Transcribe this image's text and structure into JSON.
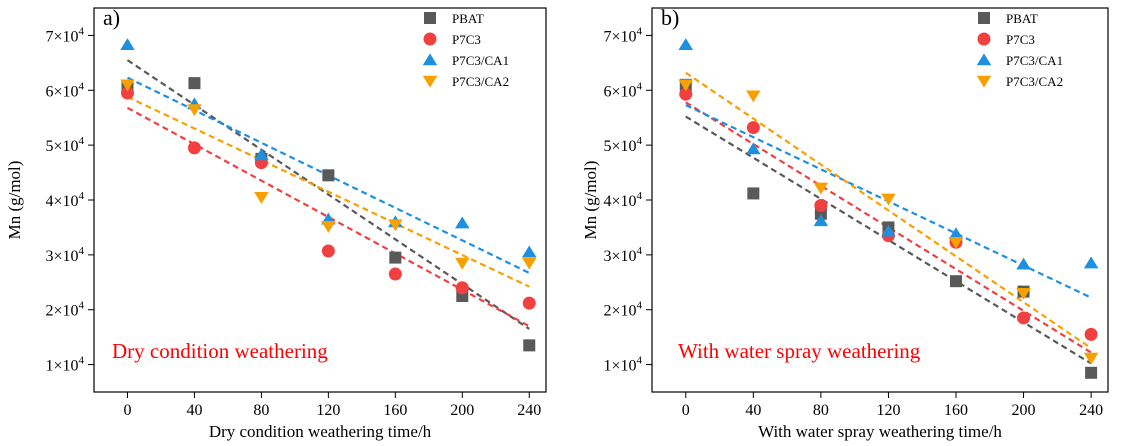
{
  "chart_data": [
    {
      "type": "scatter",
      "panel_label": "a)",
      "xlabel": "Dry condition weathering time/h",
      "ylabel": "Mn (g/mol)",
      "x_ticks": [
        "0",
        "40",
        "80",
        "120",
        "160",
        "200",
        "240"
      ],
      "y_ticks": [
        {
          "value": 10000,
          "base": "1×10",
          "exp": "4"
        },
        {
          "value": 20000,
          "base": "2×10",
          "exp": "4"
        },
        {
          "value": 30000,
          "base": "3×10",
          "exp": "4"
        },
        {
          "value": 40000,
          "base": "4×10",
          "exp": "4"
        },
        {
          "value": 50000,
          "base": "5×10",
          "exp": "4"
        },
        {
          "value": 60000,
          "base": "6×10",
          "exp": "4"
        },
        {
          "value": 70000,
          "base": "7×10",
          "exp": "4"
        }
      ],
      "xlim": [
        -20,
        250
      ],
      "ylim": [
        5000,
        75000
      ],
      "legend_position": "top-right",
      "annotation": "Dry condition weathering",
      "x": [
        0,
        40,
        80,
        120,
        160,
        200,
        240
      ],
      "series": [
        {
          "name": "PBAT",
          "marker": "square",
          "color": "#595959",
          "values": [
            60500,
            61300,
            47500,
            44500,
            29500,
            22500,
            13500
          ],
          "fit": [
            65500,
            16500
          ]
        },
        {
          "name": "P7C3",
          "marker": "circle",
          "color": "#f04040",
          "values": [
            59500,
            49500,
            46800,
            30700,
            26500,
            24000,
            21200
          ],
          "fit": [
            56800,
            17000
          ]
        },
        {
          "name": "P7C3/CA1",
          "marker": "triangle-up",
          "color": "#1e90e0",
          "values": [
            68300,
            57500,
            48200,
            36500,
            36000,
            35800,
            30500
          ],
          "fit": [
            62300,
            26700
          ]
        },
        {
          "name": "P7C3/CA2",
          "marker": "triangle-down",
          "color": "#f7a000",
          "values": [
            61000,
            56500,
            40500,
            35200,
            35500,
            28500,
            28500
          ],
          "fit": [
            58800,
            24200
          ]
        }
      ]
    },
    {
      "type": "scatter",
      "panel_label": "b)",
      "xlabel": "With water spray weathering time/h",
      "ylabel": "Mn (g/mol)",
      "x_ticks": [
        "0",
        "40",
        "80",
        "120",
        "160",
        "200",
        "240"
      ],
      "y_ticks": [
        {
          "value": 10000,
          "base": "1×10",
          "exp": "4"
        },
        {
          "value": 20000,
          "base": "2×10",
          "exp": "4"
        },
        {
          "value": 30000,
          "base": "3×10",
          "exp": "4"
        },
        {
          "value": 40000,
          "base": "4×10",
          "exp": "4"
        },
        {
          "value": 50000,
          "base": "5×10",
          "exp": "4"
        },
        {
          "value": 60000,
          "base": "6×10",
          "exp": "4"
        },
        {
          "value": 70000,
          "base": "7×10",
          "exp": "4"
        }
      ],
      "xlim": [
        -20,
        250
      ],
      "ylim": [
        5000,
        75000
      ],
      "legend_position": "top-right",
      "annotation": "With water spray weathering",
      "x": [
        0,
        40,
        80,
        120,
        160,
        200,
        240
      ],
      "series": [
        {
          "name": "PBAT",
          "marker": "square",
          "color": "#595959",
          "values": [
            61000,
            41200,
            37500,
            35000,
            25200,
            23300,
            8500
          ],
          "fit": [
            55200,
            10200
          ]
        },
        {
          "name": "P7C3",
          "marker": "circle",
          "color": "#f04040",
          "values": [
            59300,
            53200,
            39000,
            33500,
            32300,
            18500,
            15500
          ],
          "fit": [
            57800,
            12200
          ]
        },
        {
          "name": "P7C3/CA1",
          "marker": "triangle-up",
          "color": "#1e90e0",
          "values": [
            68300,
            49300,
            36200,
            34300,
            33800,
            28300,
            28500
          ],
          "fit": [
            57300,
            22200
          ]
        },
        {
          "name": "P7C3/CA2",
          "marker": "triangle-down",
          "color": "#f7a000",
          "values": [
            61000,
            59000,
            42200,
            40200,
            32300,
            23000,
            11200
          ],
          "fit": [
            63200,
            13000
          ]
        }
      ]
    }
  ]
}
